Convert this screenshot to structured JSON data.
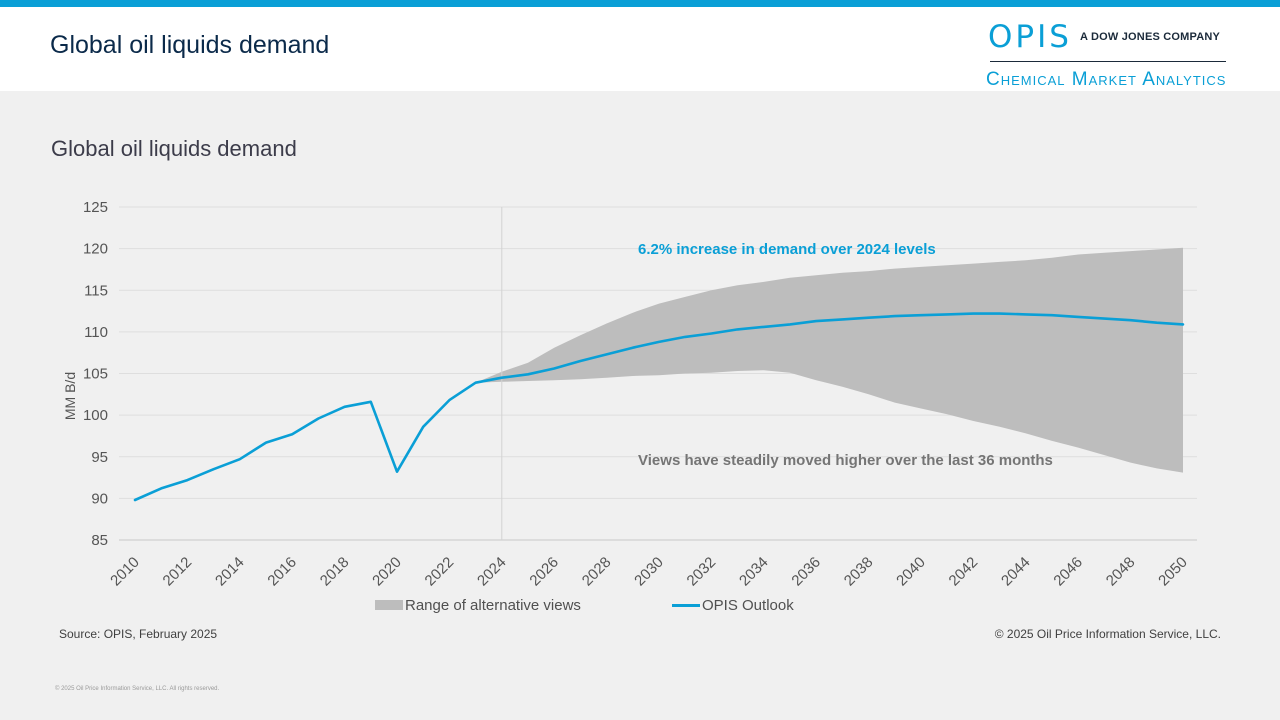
{
  "header": {
    "title": "Global oil liquids demand",
    "logo_main": "OPIS",
    "logo_tagline": "A DOW JONES COMPANY",
    "logo_sub": "Chemical Market Analytics"
  },
  "source": "Source: OPIS, February 2025",
  "copyright": "© 2025 Oil Price Information Service, LLC.",
  "footer_fine": "© 2025 Oil Price Information Service, LLC. All rights reserved.",
  "colors": {
    "accent": "#0a9fd6",
    "range": "#bdbdbd",
    "title": "#0b2a4a"
  },
  "chart_data": {
    "type": "line",
    "title": "Global oil liquids demand",
    "xlabel": "",
    "ylabel": "MM B/d",
    "ylim": [
      85,
      125
    ],
    "yticks": [
      85,
      90,
      95,
      100,
      105,
      110,
      115,
      120,
      125
    ],
    "xlim": [
      2010,
      2050
    ],
    "xticks": [
      2010,
      2012,
      2014,
      2016,
      2018,
      2020,
      2022,
      2024,
      2026,
      2028,
      2030,
      2032,
      2034,
      2036,
      2038,
      2040,
      2042,
      2044,
      2046,
      2048,
      2050
    ],
    "divider_year": 2024.0,
    "series": [
      {
        "name": "OPIS Outlook",
        "x": [
          2010,
          2011,
          2012,
          2013,
          2014,
          2015,
          2016,
          2017,
          2018,
          2019,
          2020,
          2021,
          2022,
          2023,
          2024,
          2025,
          2026,
          2027,
          2028,
          2029,
          2030,
          2031,
          2032,
          2033,
          2034,
          2035,
          2036,
          2037,
          2038,
          2039,
          2040,
          2041,
          2042,
          2043,
          2044,
          2045,
          2046,
          2047,
          2048,
          2049,
          2050
        ],
        "values": [
          89.8,
          91.2,
          92.2,
          93.5,
          94.7,
          96.7,
          97.7,
          99.6,
          101.0,
          101.6,
          93.2,
          98.6,
          101.8,
          103.9,
          104.5,
          104.9,
          105.6,
          106.5,
          107.3,
          108.1,
          108.8,
          109.4,
          109.8,
          110.3,
          110.6,
          110.9,
          111.3,
          111.5,
          111.7,
          111.9,
          112.0,
          112.1,
          112.2,
          112.2,
          112.1,
          112.0,
          111.8,
          111.6,
          111.4,
          111.1,
          110.9
        ]
      },
      {
        "name": "Range of alternative views",
        "type": "area",
        "x": [
          2023,
          2024,
          2025,
          2026,
          2027,
          2028,
          2029,
          2030,
          2031,
          2032,
          2033,
          2034,
          2035,
          2036,
          2037,
          2038,
          2039,
          2040,
          2041,
          2042,
          2043,
          2044,
          2045,
          2046,
          2047,
          2048,
          2049,
          2050
        ],
        "upper": [
          103.9,
          105.2,
          106.3,
          108.1,
          109.6,
          111.0,
          112.3,
          113.4,
          114.2,
          115.0,
          115.6,
          116.0,
          116.5,
          116.8,
          117.1,
          117.3,
          117.6,
          117.8,
          118.0,
          118.2,
          118.4,
          118.6,
          118.9,
          119.3,
          119.5,
          119.7,
          119.9,
          120.1
        ],
        "lower": [
          103.9,
          104.0,
          104.1,
          104.2,
          104.3,
          104.5,
          104.7,
          104.8,
          105.0,
          105.1,
          105.3,
          105.4,
          105.1,
          104.2,
          103.4,
          102.5,
          101.5,
          100.8,
          100.1,
          99.3,
          98.6,
          97.8,
          96.9,
          96.1,
          95.2,
          94.3,
          93.6,
          93.1
        ]
      }
    ],
    "annotations": [
      {
        "text": "6.2% increase in demand over 2024 levels",
        "x": 2029.2,
        "y": 120.1,
        "color": "#0a9fd6"
      },
      {
        "text": "Views have steadily moved higher over the last 36 months",
        "x": 2029.2,
        "y": 94.7,
        "color": "#757575"
      }
    ],
    "legend": {
      "placement": "bottom",
      "range_label": "Range of alternative views",
      "line_label": "OPIS Outlook"
    }
  }
}
